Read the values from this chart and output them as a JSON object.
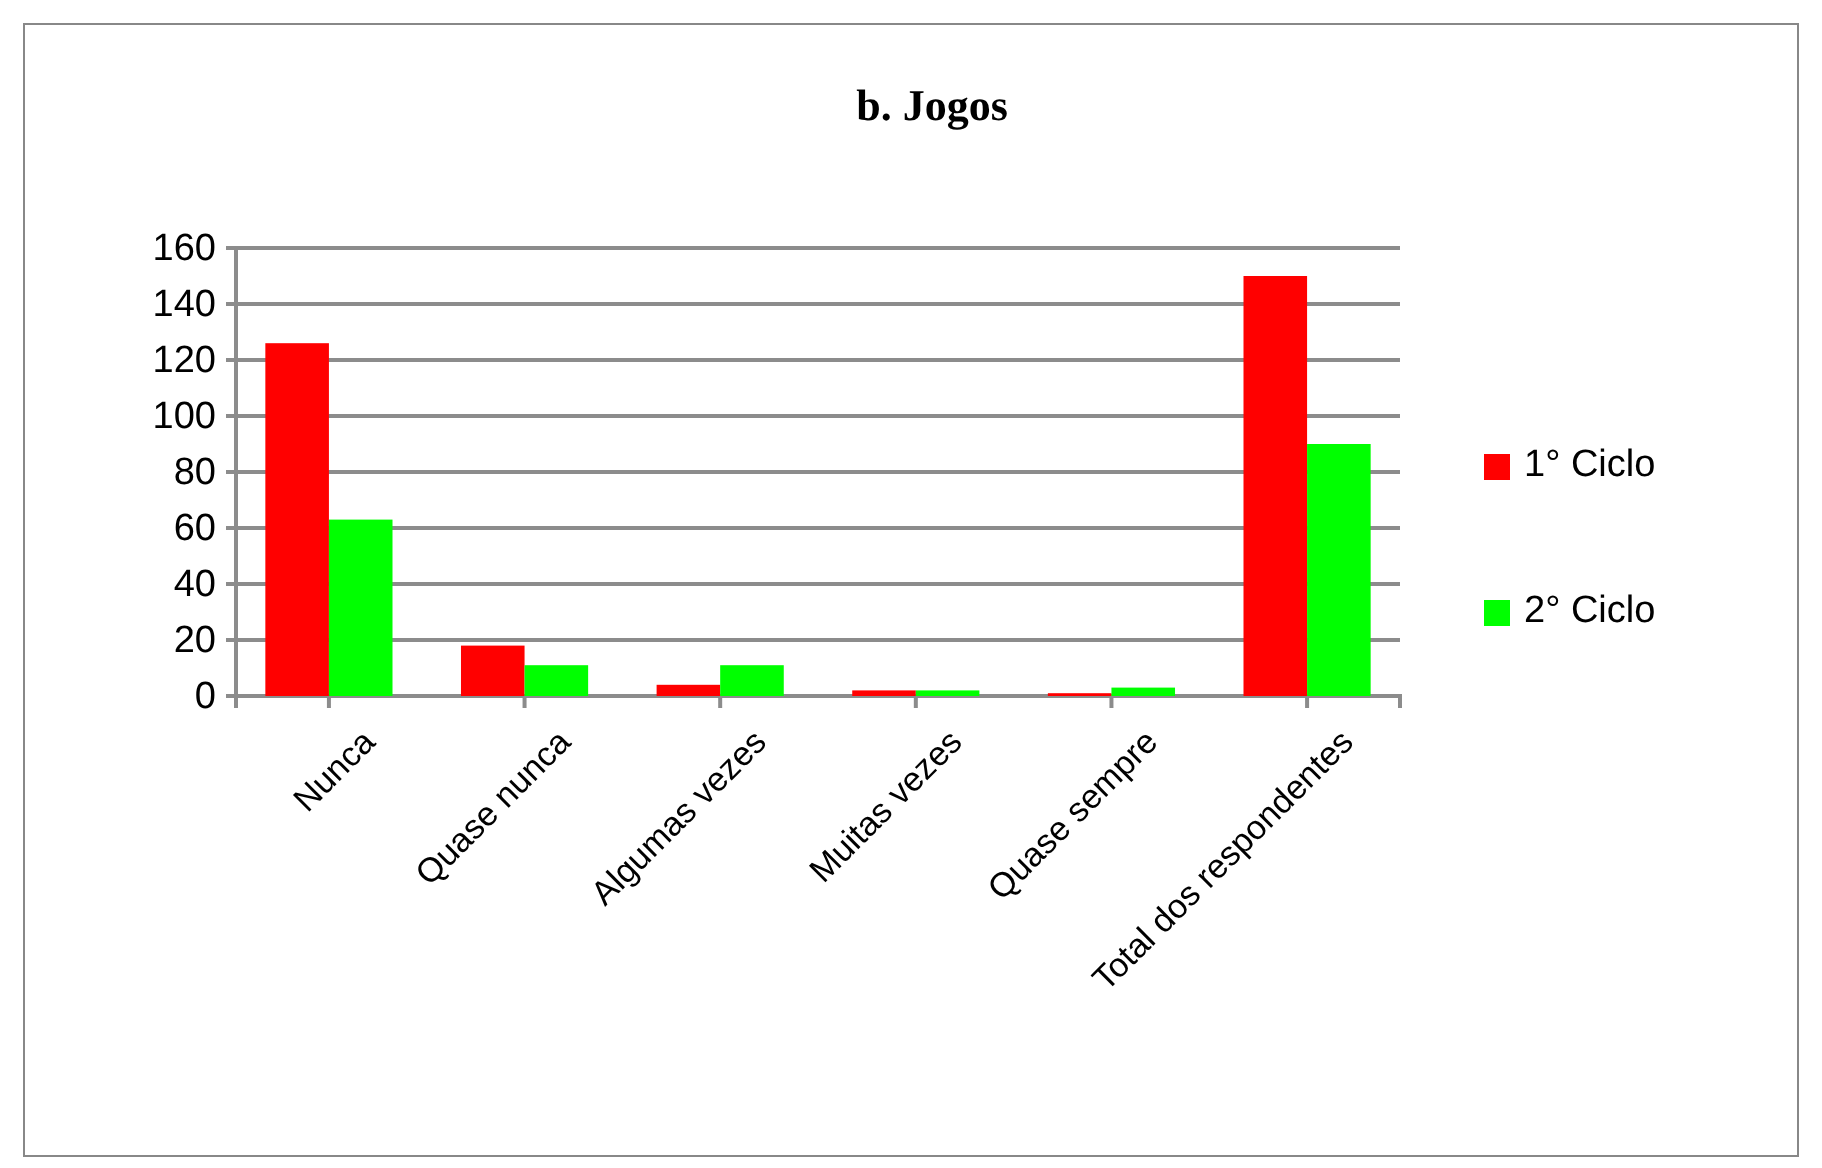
{
  "chart_data": {
    "type": "bar",
    "title": "b. Jogos",
    "categories": [
      "Nunca",
      "Quase nunca",
      "Algumas vezes",
      "Muitas vezes",
      "Quase sempre",
      "Total dos respondentes"
    ],
    "series": [
      {
        "name": "1° Ciclo",
        "color": "#ff0000",
        "values": [
          126,
          18,
          4,
          2,
          1,
          150
        ]
      },
      {
        "name": "2° Ciclo",
        "color": "#00ff00",
        "values": [
          63,
          11,
          11,
          2,
          3,
          90
        ]
      }
    ],
    "ylim": [
      0,
      160
    ],
    "yticks": [
      0,
      20,
      40,
      60,
      80,
      100,
      120,
      140,
      160
    ],
    "grid": "y",
    "legend": "right"
  }
}
